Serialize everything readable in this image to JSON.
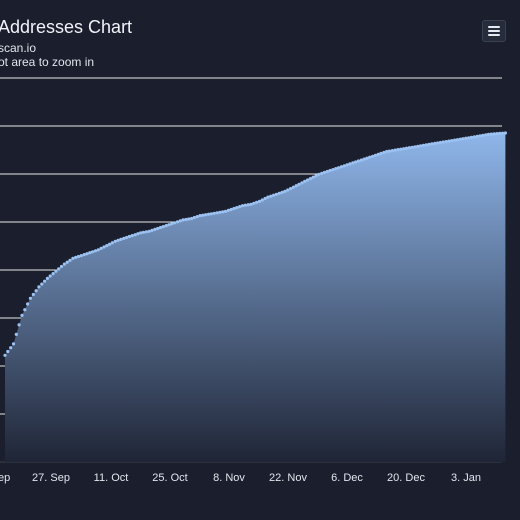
{
  "title_text": "Addresses Chart",
  "subtitle_lines": [
    "scan.io",
    "ot area to zoom in"
  ],
  "menu_icon": "hamburger-menu-icon",
  "colors": {
    "background": "#1b1f2d",
    "area_top": "#8fb6ea",
    "area_bottom": "#1f2536",
    "line": "#9cc2f2",
    "grid": "#ffffff"
  },
  "chart_data": {
    "type": "area",
    "title": "Addresses Chart",
    "xlabel": "",
    "ylabel": "",
    "x_tick_labels": [
      "ep",
      "27. Sep",
      "11. Oct",
      "25. Oct",
      "8. Nov",
      "22. Nov",
      "6. Dec",
      "20. Dec",
      "3. Jan"
    ],
    "x_tick_days": [
      0,
      14,
      28,
      42,
      56,
      70,
      84,
      98,
      112
    ],
    "grid": true,
    "legend": "none",
    "series": [
      {
        "days": [
          0,
          2,
          4,
          6,
          8,
          10,
          12,
          14,
          16,
          18,
          20,
          22,
          24,
          26,
          28,
          30,
          32,
          34,
          36,
          38,
          40,
          42,
          44,
          46,
          48,
          50,
          52,
          54,
          56,
          58,
          60,
          62,
          64,
          66,
          68,
          70,
          72,
          74,
          76,
          78,
          80,
          82,
          84,
          86,
          88,
          90,
          92,
          94,
          96,
          98,
          100,
          102,
          104,
          106,
          108,
          110,
          112,
          114,
          116,
          118
        ],
        "values": [
          0.78,
          0.74,
          0.64,
          0.58,
          0.54,
          0.51,
          0.485,
          0.46,
          0.44,
          0.43,
          0.42,
          0.41,
          0.395,
          0.38,
          0.37,
          0.36,
          0.35,
          0.345,
          0.335,
          0.325,
          0.315,
          0.305,
          0.3,
          0.29,
          0.285,
          0.28,
          0.275,
          0.265,
          0.255,
          0.25,
          0.24,
          0.225,
          0.215,
          0.205,
          0.19,
          0.175,
          0.16,
          0.145,
          0.135,
          0.125,
          0.115,
          0.105,
          0.095,
          0.085,
          0.075,
          0.065,
          0.06,
          0.055,
          0.05,
          0.045,
          0.04,
          0.035,
          0.03,
          0.025,
          0.02,
          0.015,
          0.01,
          0.005,
          0.002,
          0.0
        ]
      }
    ]
  }
}
